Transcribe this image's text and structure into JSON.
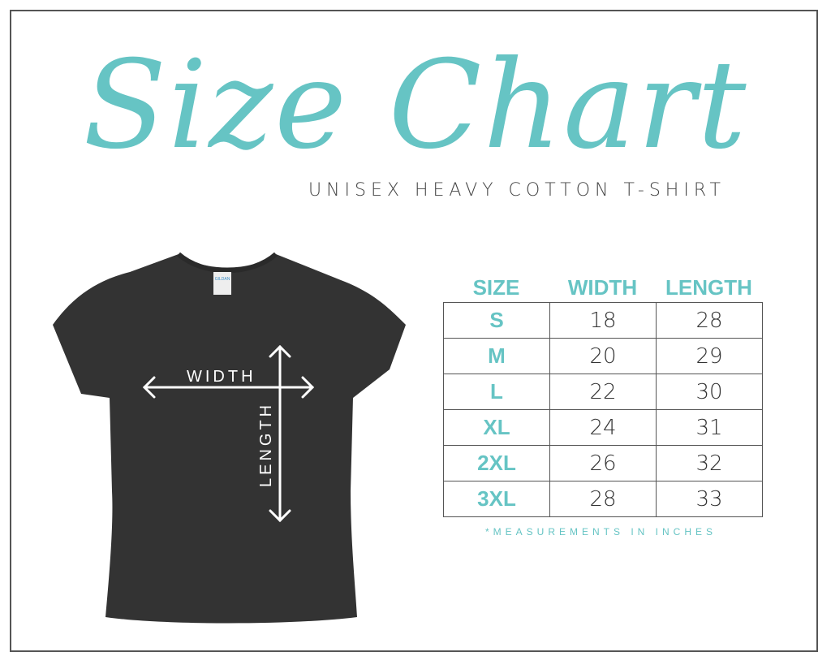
{
  "title": "Size Chart",
  "subtitle": "UNISEX HEAVY COTTON T-SHIRT",
  "shirt": {
    "width_label": "WIDTH",
    "length_label": "LENGTH",
    "tag_label": "GILDAN",
    "color": "#333333"
  },
  "accent_color": "#66c4c4",
  "table": {
    "headers": [
      "SIZE",
      "WIDTH",
      "LENGTH"
    ],
    "rows": [
      [
        "S",
        "18",
        "28"
      ],
      [
        "M",
        "20",
        "29"
      ],
      [
        "L",
        "22",
        "30"
      ],
      [
        "XL",
        "24",
        "31"
      ],
      [
        "2XL",
        "26",
        "32"
      ],
      [
        "3XL",
        "28",
        "33"
      ]
    ]
  },
  "note": "*MEASUREMENTS IN INCHES"
}
